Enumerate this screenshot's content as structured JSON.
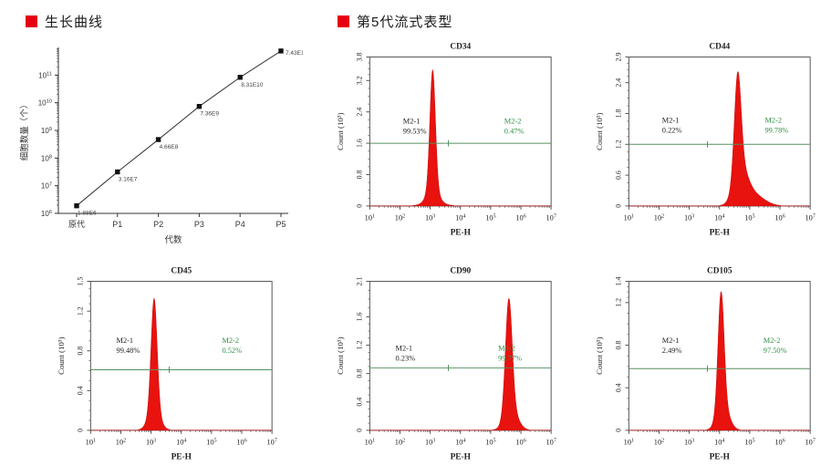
{
  "page": {
    "background": "#ffffff",
    "accent_red": "#e60012",
    "histogram_fill": "#e8120f",
    "histogram_stroke": "#c40d0d",
    "gate_line_color": "#55915f",
    "green_text_color": "#2e8f43",
    "axis_color": "#555555",
    "text_color": "#222222"
  },
  "headers": [
    {
      "label": "生长曲线"
    },
    {
      "label": "第5代流式表型"
    }
  ],
  "chart_data": [
    {
      "type": "line",
      "variant": "growth-curve",
      "title": "生长曲线",
      "xlabel": "代数",
      "ylabel": "细胞数量（个）",
      "yscale": "log",
      "ylim_exponents": [
        6,
        12
      ],
      "y_tick_exponents": [
        6,
        7,
        8,
        9,
        10,
        11
      ],
      "categories": [
        "原代",
        "P1",
        "P2",
        "P3",
        "P4",
        "P5"
      ],
      "values": [
        1880000,
        31600000,
        466000000,
        7360000000,
        83100000000,
        743000000000
      ],
      "point_labels": [
        "1.88E6",
        "3.16E7",
        "4.66E8",
        "7.36E9",
        "8.31E10",
        "7.43E11"
      ],
      "marker": "square",
      "line_color": "#333333"
    },
    {
      "type": "area",
      "variant": "flow-histogram",
      "title": "CD34",
      "xlabel": "PE-H",
      "ylabel": "Count (10³)",
      "xscale": "log",
      "x_tick_exponents": [
        1,
        2,
        3,
        4,
        5,
        6,
        7
      ],
      "y_ticks": [
        0,
        0.8,
        1.6,
        2.4,
        3.2,
        3.8
      ],
      "ylim": [
        0,
        3.8
      ],
      "gate": {
        "y": 1.6,
        "marker_x_log": 3.6
      },
      "regions": [
        {
          "name": "M2-1",
          "percent": "99.53%",
          "label_x_log": 2.1,
          "label_y": 2.1,
          "color": "#222222"
        },
        {
          "name": "M2-2",
          "percent": "0.47%",
          "label_x_log": 5.45,
          "label_y": 2.1,
          "color": "#2e8f43"
        }
      ],
      "peak_components": [
        {
          "c": 3.08,
          "s": 0.09,
          "h": 3.0
        },
        {
          "c": 3.08,
          "s": 0.18,
          "h": 0.4
        },
        {
          "c": 3.1,
          "s": 0.35,
          "h": 0.08
        }
      ]
    },
    {
      "type": "area",
      "variant": "flow-histogram",
      "title": "CD44",
      "xlabel": "PE-H",
      "ylabel": "Count (10³)",
      "xscale": "log",
      "x_tick_exponents": [
        1,
        2,
        3,
        4,
        5,
        6,
        7
      ],
      "y_ticks": [
        0,
        0.6,
        1.2,
        1.8,
        2.4,
        2.9
      ],
      "ylim": [
        0,
        2.9
      ],
      "gate": {
        "y": 1.2,
        "marker_x_log": 3.6
      },
      "regions": [
        {
          "name": "M2-1",
          "percent": "0.22%",
          "label_x_log": 2.1,
          "label_y": 1.62,
          "color": "#222222"
        },
        {
          "name": "M2-2",
          "percent": "99.78%",
          "label_x_log": 5.5,
          "label_y": 1.62,
          "color": "#2e8f43"
        }
      ],
      "peak_components": [
        {
          "c": 4.6,
          "s": 0.11,
          "h": 1.95
        },
        {
          "c": 4.7,
          "s": 0.22,
          "h": 0.6
        },
        {
          "c": 5.05,
          "s": 0.38,
          "h": 0.25
        }
      ]
    },
    {
      "type": "area",
      "variant": "flow-histogram",
      "title": "CD45",
      "xlabel": "PE-H",
      "ylabel": "Count (10³)",
      "xscale": "log",
      "x_tick_exponents": [
        1,
        2,
        3,
        4,
        5,
        6,
        7
      ],
      "y_ticks": [
        0,
        0.4,
        0.8,
        1.2,
        1.5
      ],
      "ylim": [
        0,
        1.5
      ],
      "gate": {
        "y": 0.61,
        "marker_x_log": 3.6
      },
      "regions": [
        {
          "name": "M2-1",
          "percent": "99.48%",
          "label_x_log": 1.85,
          "label_y": 0.88,
          "color": "#222222"
        },
        {
          "name": "M2-2",
          "percent": "0.52%",
          "label_x_log": 5.35,
          "label_y": 0.88,
          "color": "#2e8f43"
        }
      ],
      "peak_components": [
        {
          "c": 3.1,
          "s": 0.1,
          "h": 1.15
        },
        {
          "c": 3.1,
          "s": 0.2,
          "h": 0.18
        }
      ]
    },
    {
      "type": "area",
      "variant": "flow-histogram",
      "title": "CD90",
      "xlabel": "PE-H",
      "ylabel": "Count (10³)",
      "xscale": "log",
      "x_tick_exponents": [
        1,
        2,
        3,
        4,
        5,
        6,
        7
      ],
      "y_ticks": [
        0,
        0.4,
        0.8,
        1.2,
        1.6,
        2.1
      ],
      "ylim": [
        0,
        2.1
      ],
      "gate": {
        "y": 0.88,
        "marker_x_log": 3.6
      },
      "regions": [
        {
          "name": "M2-1",
          "percent": "0.23%",
          "label_x_log": 1.85,
          "label_y": 1.12,
          "color": "#222222"
        },
        {
          "name": "M2-2",
          "percent": "99.77%",
          "label_x_log": 5.25,
          "label_y": 1.12,
          "color": "#2e8f43"
        }
      ],
      "peak_components": [
        {
          "c": 5.6,
          "s": 0.11,
          "h": 1.6
        },
        {
          "c": 5.68,
          "s": 0.22,
          "h": 0.28
        }
      ]
    },
    {
      "type": "area",
      "variant": "flow-histogram",
      "title": "CD105",
      "xlabel": "PE-H",
      "ylabel": "Count (10³)",
      "xscale": "log",
      "x_tick_exponents": [
        1,
        2,
        3,
        4,
        5,
        6,
        7
      ],
      "y_ticks": [
        0,
        0.4,
        0.8,
        1.2,
        1.4
      ],
      "ylim": [
        0,
        1.4
      ],
      "gate": {
        "y": 0.58,
        "marker_x_log": 3.6
      },
      "regions": [
        {
          "name": "M2-1",
          "percent": "2.49%",
          "label_x_log": 2.1,
          "label_y": 0.82,
          "color": "#222222"
        },
        {
          "name": "M2-2",
          "percent": "97.50%",
          "label_x_log": 5.45,
          "label_y": 0.82,
          "color": "#2e8f43"
        }
      ],
      "peak_components": [
        {
          "c": 4.05,
          "s": 0.1,
          "h": 1.1
        },
        {
          "c": 4.12,
          "s": 0.2,
          "h": 0.22
        }
      ]
    }
  ]
}
